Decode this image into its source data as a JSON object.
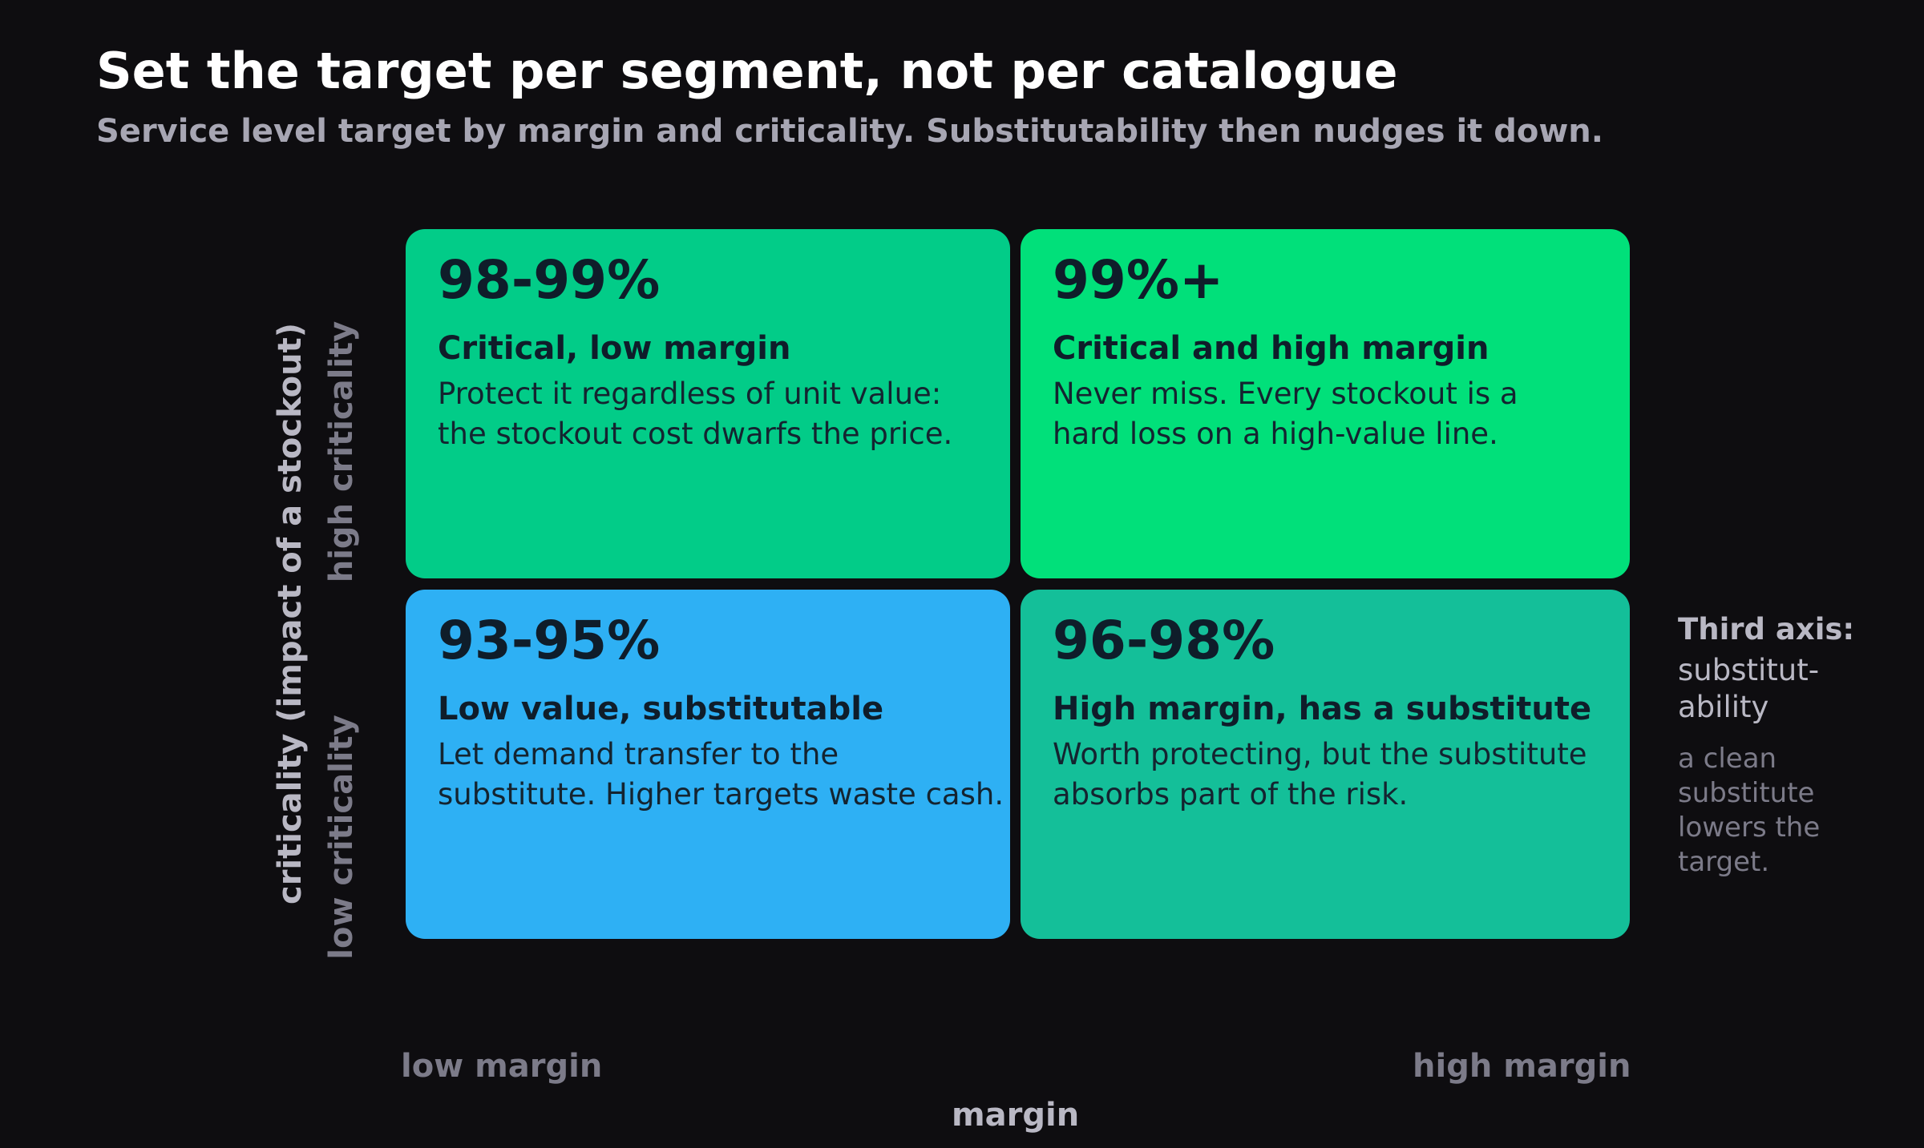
{
  "header": {
    "title": "Set the target per segment, not per catalogue",
    "subtitle": "Service level target by margin and criticality. Substitutability then nudges it down."
  },
  "matrix": {
    "cells": [
      {
        "target": "98-99%",
        "heading": "Critical, low margin",
        "desc_lines": [
          "Protect it regardless of unit value:",
          "the stockout cost dwarfs the price."
        ],
        "color": "#02cc88"
      },
      {
        "target": "99%+",
        "heading": "Critical and high margin",
        "desc_lines": [
          "Never miss. Every stockout is a",
          "hard loss on a high-value line."
        ],
        "color": "#01e07a"
      },
      {
        "target": "93-95%",
        "heading": "Low value, substitutable",
        "desc_lines": [
          "Let demand transfer to the",
          "substitute. Higher targets waste cash."
        ],
        "color": "#2eb0f4"
      },
      {
        "target": "96-98%",
        "heading": "High margin, has a substitute",
        "desc_lines": [
          "Worth protecting, but the substitute",
          "absorbs part of the risk."
        ],
        "color": "#14bf99"
      }
    ]
  },
  "axes": {
    "y_title": "criticality (impact of a stockout)",
    "y_high": "high criticality",
    "y_low": "low criticality",
    "x_title": "margin",
    "x_low": "low margin",
    "x_high": "high margin"
  },
  "third_axis": {
    "heading": "Third axis:",
    "name_lines": [
      "substitut-",
      "ability"
    ],
    "note_lines": [
      "a clean",
      "substitute",
      "lowers the",
      "target."
    ]
  }
}
